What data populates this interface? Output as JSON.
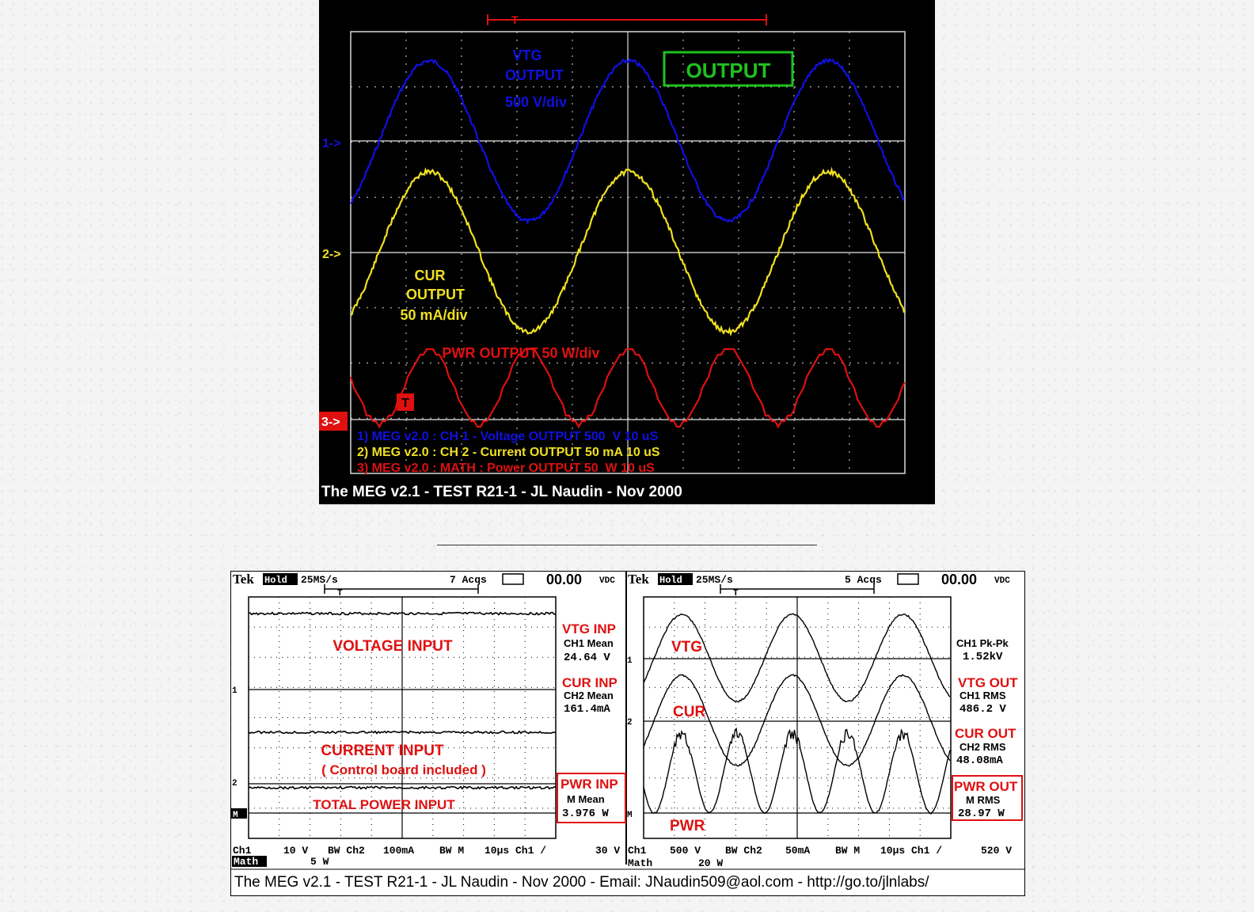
{
  "top_scope": {
    "trigger_marker": "T",
    "output_box": "OUTPUT",
    "ch1_marker": "1->",
    "ch2_marker": "2->",
    "ch3_marker": "3->",
    "vtg_label": [
      "VTG",
      "OUTPUT",
      "500 V/div"
    ],
    "cur_label": [
      "CUR",
      "OUTPUT",
      "50 mA/div"
    ],
    "pwr_label": "PWR OUTPUT 50 W/div",
    "legend": [
      "1) MEG v2.0 : CH 1 - Voltage OUTPUT 500  V 10 uS",
      "2) MEG v2.0 : CH 2 - Current OUTPUT 50 mA 10 uS",
      "3) MEG v2.0 : MATH : Power OUTPUT 50  W 10 uS"
    ],
    "caption": "The MEG v2.1 - TEST R21-1 - JL Naudin - Nov 2000",
    "colors": {
      "ch1": "#1010e0",
      "ch2": "#f0e020",
      "math": "#e01010",
      "box": "#20c020"
    }
  },
  "left_scope": {
    "brand": "Tek",
    "hold": "Hold",
    "sample_rate": "25MS/s",
    "acqs": "7 Acqs",
    "offset": "00.00",
    "offset_unit": "VDC",
    "trigger_marker": "T",
    "ch1_marker": "1",
    "ch2_marker": "2",
    "math_marker": "M",
    "labels": [
      "VOLTAGE INPUT",
      "CURRENT INPUT",
      "( Control board included )",
      "TOTAL POWER INPUT"
    ],
    "readouts": [
      {
        "title": "VTG INP",
        "name": "CH1 Mean",
        "value": "24.64 V"
      },
      {
        "title": "CUR INP",
        "name": "CH2 Mean",
        "value": "161.4mA"
      },
      {
        "title": "PWR INP",
        "name": "M Mean",
        "value": "3.976 W"
      }
    ],
    "bottom_row1": [
      "Ch1",
      "10 V",
      "BW Ch2",
      "100mA",
      "BW M",
      "10µs Ch1 /",
      "30 V"
    ],
    "bottom_row2": [
      "Math",
      "5 W"
    ]
  },
  "right_scope": {
    "brand": "Tek",
    "hold": "Hold",
    "sample_rate": "25MS/s",
    "acqs": "5 Acqs",
    "offset": "00.00",
    "offset_unit": "VDC",
    "trigger_marker": "T",
    "ch1_marker": "1",
    "ch2_marker": "2",
    "math_marker": "M",
    "labels": [
      "VTG",
      "CUR",
      "PWR"
    ],
    "readouts": [
      {
        "title": "",
        "name": "CH1 Pk-Pk",
        "value": "1.52kV"
      },
      {
        "title": "VTG OUT",
        "name": "CH1 RMS",
        "value": "486.2 V"
      },
      {
        "title": "CUR OUT",
        "name": "CH2 RMS",
        "value": "48.08mA"
      },
      {
        "title": "PWR OUT",
        "name": "M RMS",
        "value": "28.97 W"
      }
    ],
    "bottom_row1": [
      "Ch1",
      "500 V",
      "BW Ch2",
      "50mA",
      "BW M",
      "10µs Ch1 /",
      "520 V"
    ],
    "bottom_row2": [
      "Math",
      "20 W"
    ]
  },
  "footer_caption": "The MEG v2.1 - TEST R21-1 - JL Naudin - Nov 2000 - Email: JNaudin509@aol.com - http://go.to/jlnlabs/",
  "chart_data": [
    {
      "type": "line",
      "title": "",
      "xlabel": "",
      "ylabel": "",
      "time_per_div_us": 10,
      "grid": true,
      "series": [
        {
          "name": "Voltage OUTPUT",
          "scale": "500 V/div",
          "period_div": 3.6,
          "amplitude_div": 1.45,
          "color": "#1010e0"
        },
        {
          "name": "Current OUTPUT",
          "scale": "50 mA/div",
          "period_div": 3.6,
          "amplitude_div": 1.45,
          "color": "#f0e020"
        },
        {
          "name": "Power OUTPUT",
          "scale": "50 W/div",
          "period_div": 1.8,
          "amplitude_div": 0.52,
          "color": "#e01010"
        }
      ]
    },
    {
      "type": "line",
      "title": "",
      "xlabel": "",
      "ylabel": "",
      "time_per_div_us": 10,
      "grid": true,
      "series": [
        {
          "name": "VOLTAGE INPUT",
          "scale": "10 V",
          "mean": "24.64 V"
        },
        {
          "name": "CURRENT INPUT",
          "scale": "100mA",
          "mean": "161.4mA"
        },
        {
          "name": "TOTAL POWER INPUT",
          "scale": "5 W",
          "mean": "3.976 W"
        }
      ]
    },
    {
      "type": "line",
      "title": "",
      "xlabel": "",
      "ylabel": "",
      "time_per_div_us": 10,
      "grid": true,
      "series": [
        {
          "name": "VTG",
          "scale": "500 V",
          "rms": "486.2 V",
          "pk_pk": "1.52kV",
          "period_div": 3.6
        },
        {
          "name": "CUR",
          "scale": "50mA",
          "rms": "48.08mA",
          "period_div": 3.6
        },
        {
          "name": "PWR",
          "scale": "20 W",
          "rms": "28.97 W",
          "period_div": 1.8
        }
      ]
    }
  ]
}
